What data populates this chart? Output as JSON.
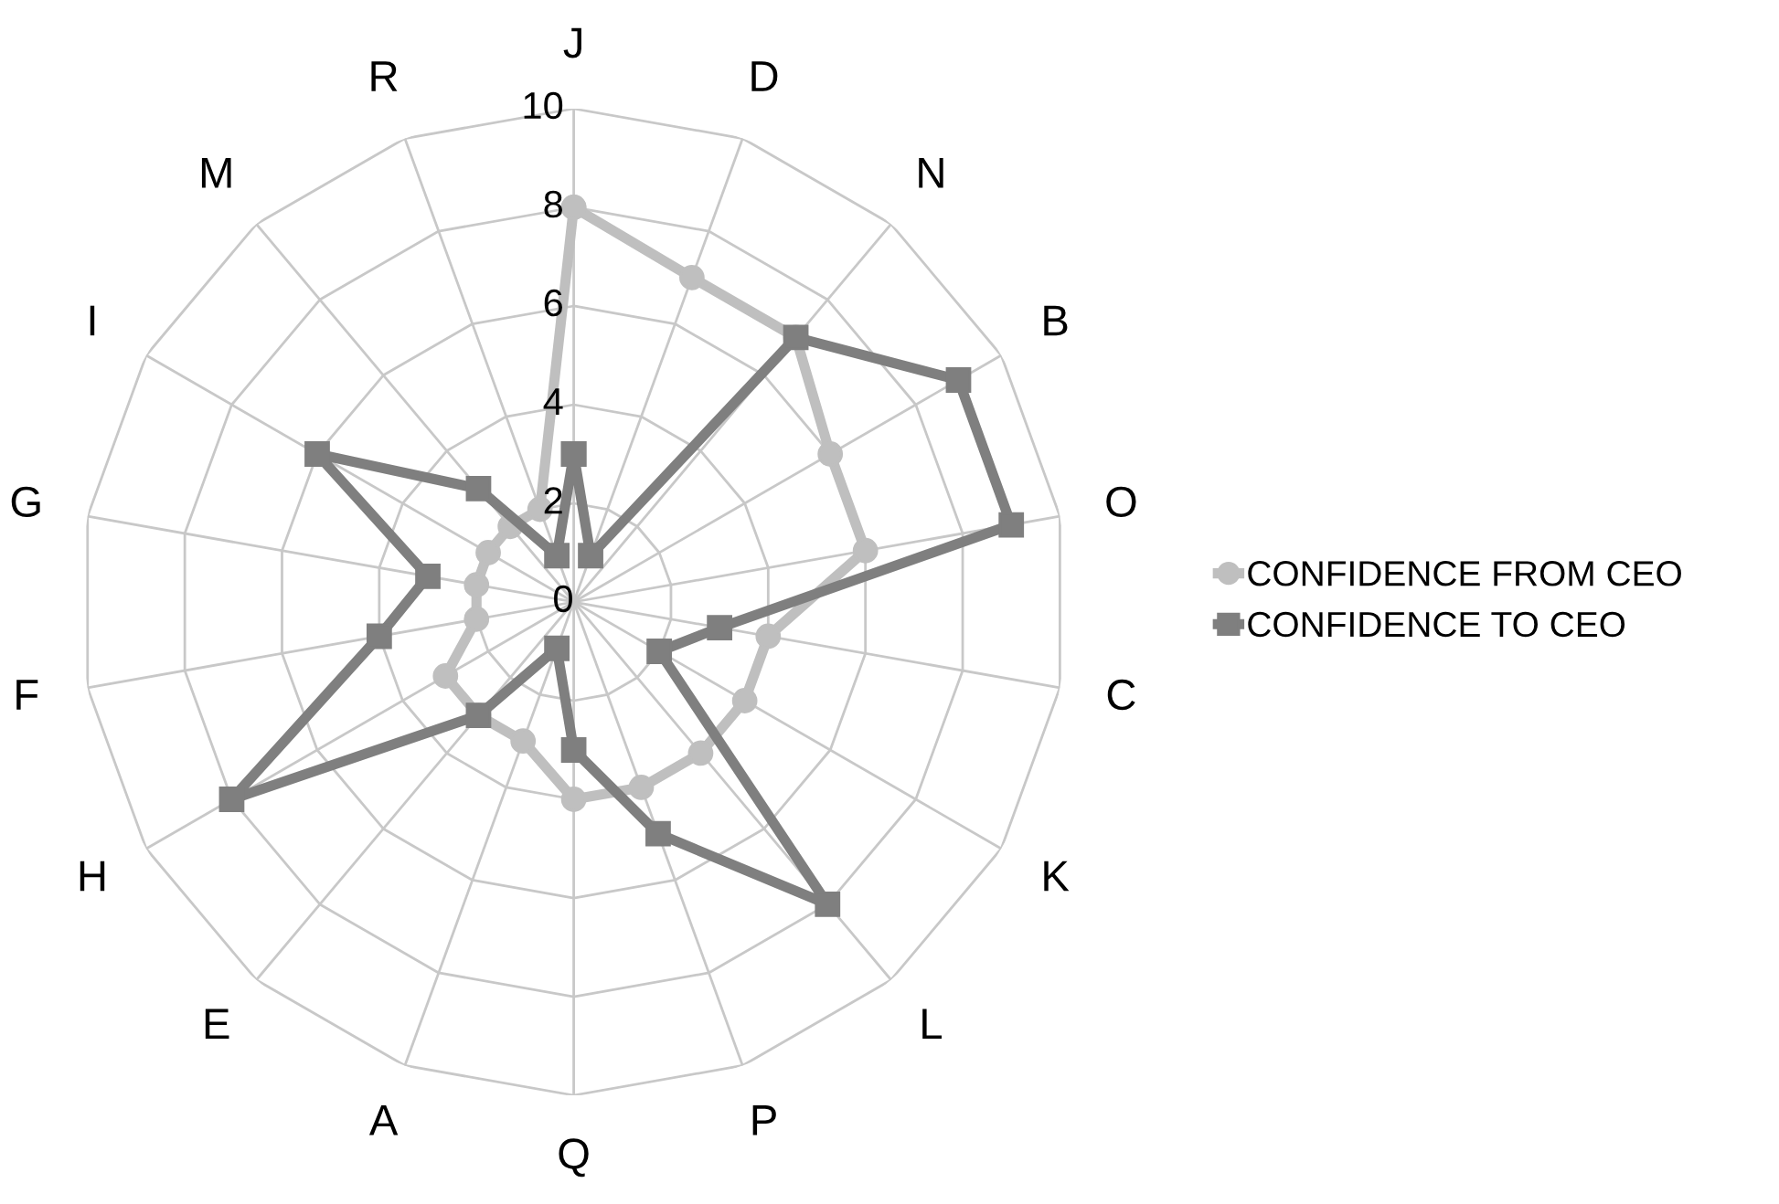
{
  "chart_data": {
    "type": "radar",
    "categories": [
      "J",
      "D",
      "N",
      "B",
      "O",
      "C",
      "K",
      "L",
      "P",
      "Q",
      "A",
      "E",
      "H",
      "F",
      "G",
      "I",
      "M",
      "R"
    ],
    "series": [
      {
        "name": "CONFIDENCE FROM CEO",
        "color": "#bfbfbf",
        "marker": "circle",
        "values": [
          8,
          7,
          7,
          6,
          6,
          4,
          4,
          4,
          4,
          4,
          3,
          3,
          3,
          2,
          2,
          2,
          2,
          2
        ]
      },
      {
        "name": "CONFIDENCE TO CEO",
        "color": "#7f7f7f",
        "marker": "square",
        "values": [
          3,
          1,
          7,
          9,
          9,
          3,
          2,
          8,
          5,
          3,
          1,
          3,
          8,
          4,
          3,
          6,
          3,
          1
        ]
      }
    ],
    "ylim": [
      0,
      10
    ],
    "yticks": [
      0,
      2,
      4,
      6,
      8,
      10
    ],
    "grid": true,
    "legend": "right"
  }
}
